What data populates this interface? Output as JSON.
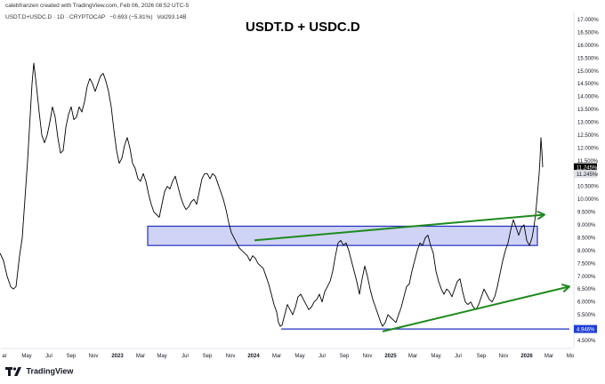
{
  "credit": "calebfranzen created with TradingView.com, Feb 06, 2026 08:52 UTC-5",
  "header": {
    "symbol": "USDT.D+USDC.D · 1D · CRYPTOCAP",
    "change": "−0.693 (−5.81%)",
    "volume": "Vol293.14B"
  },
  "branding": "TradingView",
  "chart_data": {
    "type": "line",
    "title": "USDT.D + USDC.D",
    "xlabel": "",
    "ylabel": "",
    "x_ticks": [
      "ar",
      "May",
      "Jul",
      "Sep",
      "Nov",
      "2023",
      "Mar",
      "May",
      "Jul",
      "Sep",
      "Nov",
      "2024",
      "Mar",
      "May",
      "Jul",
      "Sep",
      "Nov",
      "2025",
      "Mar",
      "May",
      "Jul",
      "Sep",
      "Nov",
      "2026",
      "Mar",
      "Mo"
    ],
    "y_ticks": [
      "17.000%",
      "16.500%",
      "16.000%",
      "15.500%",
      "15.000%",
      "14.500%",
      "14.000%",
      "13.500%",
      "13.000%",
      "12.500%",
      "12.000%",
      "11.500%",
      "11.000%",
      "10.500%",
      "10.000%",
      "9.500%",
      "9.000%",
      "8.500%",
      "8.000%",
      "7.500%",
      "7.000%",
      "6.500%",
      "6.000%",
      "5.500%",
      "5.000%",
      "4.500%"
    ],
    "ylim": [
      4.5,
      17.0
    ],
    "grid": false,
    "series": [
      {
        "points": [
          [
            0,
            7.9
          ],
          [
            4,
            7.6
          ],
          [
            8,
            7.0
          ],
          [
            12,
            6.6
          ],
          [
            15,
            6.5
          ],
          [
            18,
            6.6
          ],
          [
            22,
            7.8
          ],
          [
            25,
            8.5
          ],
          [
            28,
            10.0
          ],
          [
            31,
            11.5
          ],
          [
            34,
            13.3
          ],
          [
            36,
            14.5
          ],
          [
            38,
            15.3
          ],
          [
            41,
            14.4
          ],
          [
            44,
            13.4
          ],
          [
            47,
            12.5
          ],
          [
            50,
            12.2
          ],
          [
            53,
            12.5
          ],
          [
            56,
            13.0
          ],
          [
            59,
            13.6
          ],
          [
            62,
            13.2
          ],
          [
            65,
            12.4
          ],
          [
            68,
            11.8
          ],
          [
            71,
            11.9
          ],
          [
            74,
            12.8
          ],
          [
            77,
            13.3
          ],
          [
            80,
            13.6
          ],
          [
            83,
            13.1
          ],
          [
            86,
            13.2
          ],
          [
            89,
            13.6
          ],
          [
            92,
            13.4
          ],
          [
            95,
            13.8
          ],
          [
            98,
            14.4
          ],
          [
            101,
            14.7
          ],
          [
            104,
            14.5
          ],
          [
            107,
            14.2
          ],
          [
            110,
            14.5
          ],
          [
            113,
            14.8
          ],
          [
            116,
            14.9
          ],
          [
            119,
            14.6
          ],
          [
            122,
            14.2
          ],
          [
            125,
            13.6
          ],
          [
            128,
            12.7
          ],
          [
            131,
            11.9
          ],
          [
            134,
            11.4
          ],
          [
            137,
            11.6
          ],
          [
            140,
            12.1
          ],
          [
            143,
            12.4
          ],
          [
            146,
            12.0
          ],
          [
            149,
            11.4
          ],
          [
            152,
            11.2
          ],
          [
            155,
            10.8
          ],
          [
            158,
            10.7
          ],
          [
            161,
            11.0
          ],
          [
            164,
            10.7
          ],
          [
            167,
            10.2
          ],
          [
            170,
            9.8
          ],
          [
            173,
            9.5
          ],
          [
            176,
            9.4
          ],
          [
            179,
            9.3
          ],
          [
            182,
            9.8
          ],
          [
            185,
            10.3
          ],
          [
            188,
            10.5
          ],
          [
            191,
            10.4
          ],
          [
            194,
            10.7
          ],
          [
            197,
            10.9
          ],
          [
            200,
            10.5
          ],
          [
            203,
            10.1
          ],
          [
            206,
            9.8
          ],
          [
            209,
            9.6
          ],
          [
            212,
            9.7
          ],
          [
            215,
            9.9
          ],
          [
            218,
            10.0
          ],
          [
            221,
            9.8
          ],
          [
            224,
            10.3
          ],
          [
            227,
            10.8
          ],
          [
            230,
            11.0
          ],
          [
            233,
            11.0
          ],
          [
            236,
            10.8
          ],
          [
            239,
            11.0
          ],
          [
            242,
            10.9
          ],
          [
            245,
            10.6
          ],
          [
            248,
            10.3
          ],
          [
            251,
            10.0
          ],
          [
            254,
            9.6
          ],
          [
            257,
            9.1
          ],
          [
            260,
            8.7
          ],
          [
            263,
            8.5
          ],
          [
            266,
            8.3
          ],
          [
            269,
            8.1
          ],
          [
            272,
            8.0
          ],
          [
            275,
            7.9
          ],
          [
            278,
            7.8
          ],
          [
            281,
            7.6
          ],
          [
            284,
            7.8
          ],
          [
            287,
            7.7
          ],
          [
            290,
            7.5
          ],
          [
            293,
            7.4
          ],
          [
            296,
            7.3
          ],
          [
            299,
            7.0
          ],
          [
            302,
            6.7
          ],
          [
            305,
            6.3
          ],
          [
            308,
            5.9
          ],
          [
            311,
            5.6
          ],
          [
            313,
            5.2
          ],
          [
            315,
            5.05
          ],
          [
            317,
            5.1
          ],
          [
            320,
            5.5
          ],
          [
            323,
            5.9
          ],
          [
            326,
            5.7
          ],
          [
            329,
            5.5
          ],
          [
            332,
            5.8
          ],
          [
            335,
            6.2
          ],
          [
            338,
            6.3
          ],
          [
            341,
            6.1
          ],
          [
            344,
            5.9
          ],
          [
            347,
            5.7
          ],
          [
            350,
            5.8
          ],
          [
            353,
            6.0
          ],
          [
            356,
            6.1
          ],
          [
            359,
            6.3
          ],
          [
            362,
            6.0
          ],
          [
            365,
            6.4
          ],
          [
            368,
            6.6
          ],
          [
            371,
            6.8
          ],
          [
            374,
            7.2
          ],
          [
            377,
            7.8
          ],
          [
            380,
            8.3
          ],
          [
            383,
            8.4
          ],
          [
            386,
            8.2
          ],
          [
            389,
            8.3
          ],
          [
            392,
            8.0
          ],
          [
            395,
            7.6
          ],
          [
            398,
            7.2
          ],
          [
            401,
            6.8
          ],
          [
            404,
            6.3
          ],
          [
            407,
            6.9
          ],
          [
            410,
            7.4
          ],
          [
            413,
            7.0
          ],
          [
            416,
            6.5
          ],
          [
            419,
            6.1
          ],
          [
            422,
            5.8
          ],
          [
            425,
            5.5
          ],
          [
            428,
            5.2
          ],
          [
            430,
            5.05
          ],
          [
            433,
            5.2
          ],
          [
            436,
            5.5
          ],
          [
            439,
            5.4
          ],
          [
            442,
            5.3
          ],
          [
            445,
            5.2
          ],
          [
            448,
            5.5
          ],
          [
            451,
            5.8
          ],
          [
            454,
            6.2
          ],
          [
            457,
            6.6
          ],
          [
            460,
            6.7
          ],
          [
            463,
            7.2
          ],
          [
            466,
            7.6
          ],
          [
            469,
            8.0
          ],
          [
            472,
            8.3
          ],
          [
            475,
            8.2
          ],
          [
            478,
            8.5
          ],
          [
            481,
            8.6
          ],
          [
            484,
            8.2
          ],
          [
            487,
            7.9
          ],
          [
            490,
            7.2
          ],
          [
            493,
            6.8
          ],
          [
            496,
            6.5
          ],
          [
            499,
            6.3
          ],
          [
            502,
            6.5
          ],
          [
            505,
            6.4
          ],
          [
            508,
            6.2
          ],
          [
            511,
            6.5
          ],
          [
            514,
            6.8
          ],
          [
            517,
            6.9
          ],
          [
            520,
            6.4
          ],
          [
            523,
            6.0
          ],
          [
            526,
            5.9
          ],
          [
            529,
            6.0
          ],
          [
            532,
            5.8
          ],
          [
            535,
            5.7
          ],
          [
            538,
            5.9
          ],
          [
            541,
            6.2
          ],
          [
            544,
            6.5
          ],
          [
            547,
            6.3
          ],
          [
            550,
            6.1
          ],
          [
            553,
            6.0
          ],
          [
            556,
            6.2
          ],
          [
            559,
            6.6
          ],
          [
            562,
            7.1
          ],
          [
            565,
            7.6
          ],
          [
            568,
            8.0
          ],
          [
            571,
            8.3
          ],
          [
            574,
            8.8
          ],
          [
            577,
            9.2
          ],
          [
            580,
            8.9
          ],
          [
            583,
            8.6
          ],
          [
            586,
            8.9
          ],
          [
            589,
            9.0
          ],
          [
            592,
            8.4
          ],
          [
            595,
            8.2
          ],
          [
            598,
            8.5
          ],
          [
            600,
            8.9
          ],
          [
            602,
            9.4
          ],
          [
            604,
            10.2
          ],
          [
            606,
            11.0
          ],
          [
            607,
            11.6
          ],
          [
            608,
            12.4
          ],
          [
            609,
            11.9
          ],
          [
            610,
            11.25
          ]
        ]
      }
    ],
    "annotations": {
      "range_box": {
        "x_start": 166,
        "x_end": 604,
        "y_low": 8.2,
        "y_high": 8.95
      },
      "support_line": {
        "x_start": 316,
        "x_end": 640,
        "y": 4.946
      },
      "trend_arrows": [
        {
          "x_start": 286,
          "y_start": 8.4,
          "x_end": 612,
          "y_end": 9.4
        },
        {
          "x_start": 430,
          "y_start": 4.85,
          "x_end": 640,
          "y_end": 6.6
        }
      ],
      "price_badges": [
        {
          "label": "11.245%",
          "y": 11.245,
          "fill": "#000000",
          "text_color": "#ffffff"
        },
        {
          "label": "11.245%",
          "y": 10.99,
          "fill": "#dfe1e6",
          "text_color": "#131722"
        },
        {
          "label": "4.946%",
          "y": 4.946,
          "fill": "#1f3fd6",
          "text_color": "#ffffff"
        }
      ]
    },
    "colors": {
      "line": "#000000",
      "range_box_fill": "#c7cbf3",
      "range_box_stroke": "#1f2fbf",
      "support_line": "#1f2fbf",
      "arrows": "#1e8a1e"
    }
  }
}
